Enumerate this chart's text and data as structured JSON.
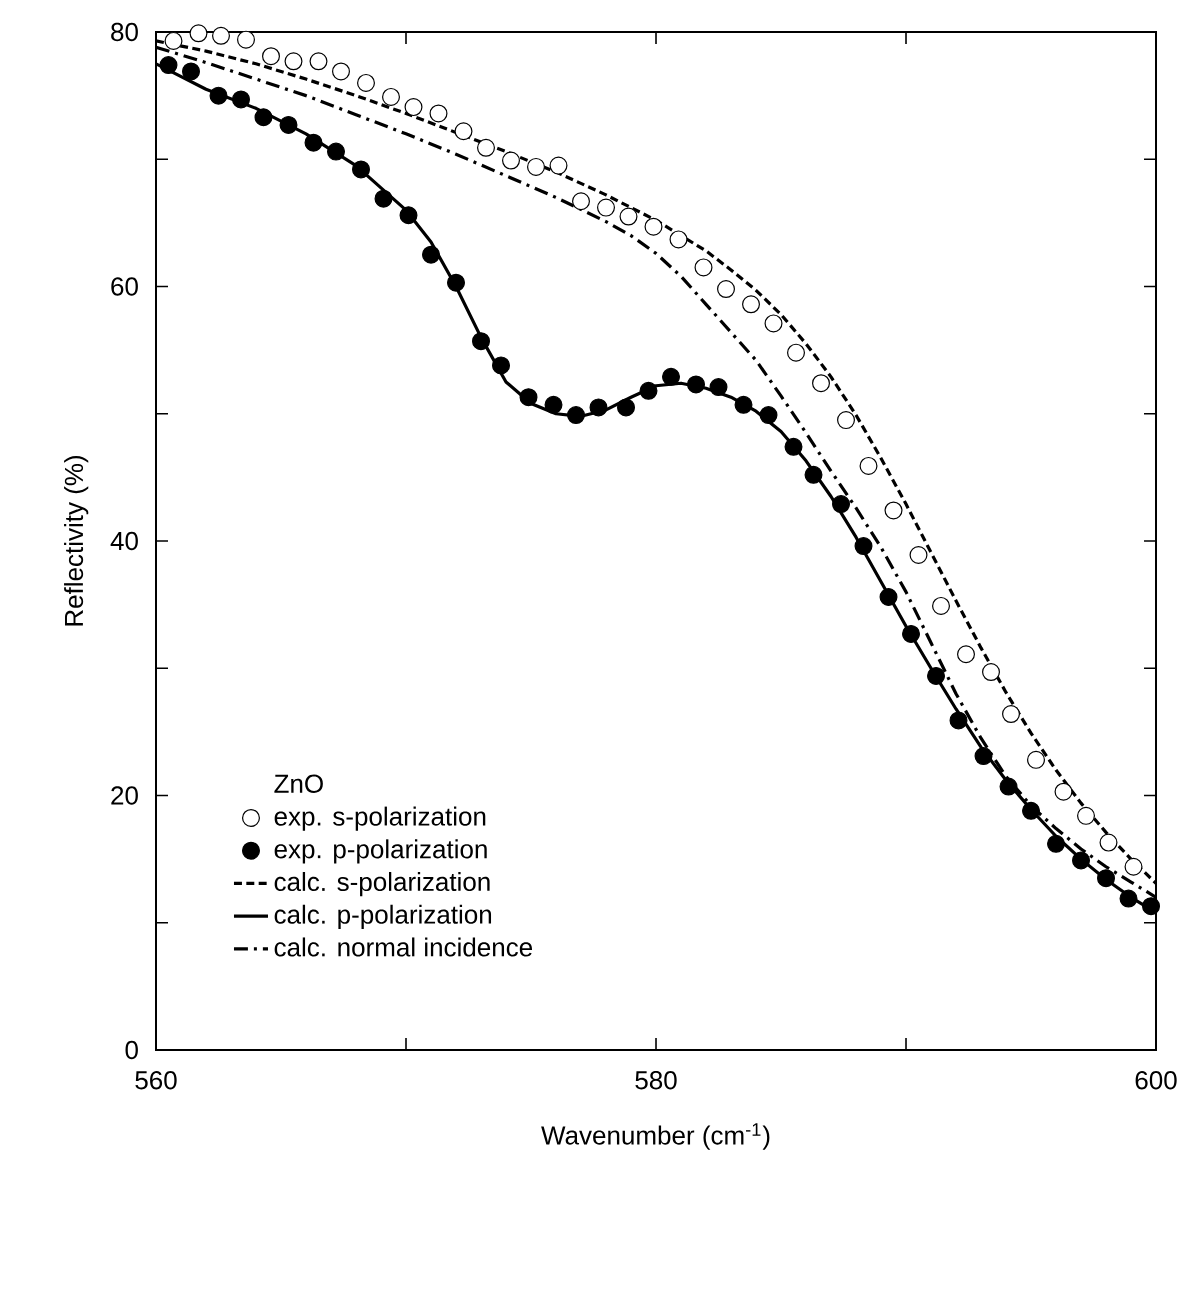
{
  "chart_data": {
    "type": "scatter",
    "xlabel": "Wavenumber (cm$^{-1}$)",
    "ylabel": "Reflectivity (%)",
    "legend_title": "ZnO",
    "xlim": [
      560,
      600
    ],
    "ylim": [
      0,
      80
    ],
    "xticks": [
      560,
      {
        "value": 570,
        "label": null
      },
      580,
      {
        "value": 590,
        "label": null
      },
      600
    ],
    "yticks": [
      0,
      {
        "value": 10,
        "label": null
      },
      20,
      {
        "value": 30,
        "label": null
      },
      40,
      {
        "value": 50,
        "label": null
      },
      60,
      {
        "value": 70,
        "label": null
      },
      80
    ],
    "grid": false,
    "legend": "bottom left",
    "series": [
      {
        "name": "exp. s-polarization",
        "marker": "circle",
        "color": "#ffffff",
        "x": [
          560.7,
          561.7,
          562.6,
          563.6,
          564.6,
          565.5,
          566.5,
          567.4,
          568.4,
          569.4,
          570.3,
          571.3,
          572.3,
          573.2,
          574.2,
          575.2,
          576.1,
          577.0,
          578.0,
          578.9,
          579.9,
          580.9,
          581.9,
          582.8,
          583.8,
          584.7,
          585.6,
          586.6,
          587.6,
          588.5,
          589.5,
          590.5,
          591.4,
          592.4,
          593.4,
          594.2,
          595.2,
          596.3,
          597.2,
          598.1,
          599.1
        ],
        "values": [
          79.3,
          79.9,
          79.7,
          79.4,
          78.1,
          77.7,
          77.7,
          76.9,
          76.0,
          74.9,
          74.1,
          73.6,
          72.2,
          70.9,
          69.9,
          69.4,
          69.5,
          66.7,
          66.2,
          65.5,
          64.7,
          63.7,
          61.5,
          59.8,
          58.6,
          57.1,
          54.8,
          52.4,
          49.5,
          45.9,
          42.4,
          38.9,
          34.9,
          31.1,
          29.7,
          26.4,
          22.8,
          20.3,
          18.4,
          16.3,
          14.4
        ]
      },
      {
        "name": "exp. p-polarization",
        "marker": "circle",
        "color": "#000000",
        "x": [
          560.5,
          561.4,
          562.5,
          563.4,
          564.3,
          565.3,
          566.3,
          567.2,
          568.2,
          569.1,
          570.1,
          571.0,
          572.0,
          573.0,
          573.8,
          574.9,
          575.9,
          576.8,
          577.7,
          578.8,
          579.7,
          580.6,
          581.6,
          582.5,
          583.5,
          584.5,
          585.5,
          586.3,
          587.4,
          588.3,
          589.3,
          590.2,
          591.2,
          592.1,
          593.1,
          594.1,
          595.0,
          596.0,
          597.0,
          598.0,
          598.9,
          599.8
        ],
        "values": [
          77.4,
          76.9,
          75.0,
          74.7,
          73.3,
          72.7,
          71.3,
          70.6,
          69.2,
          66.9,
          65.6,
          62.5,
          60.3,
          55.7,
          53.8,
          51.3,
          50.7,
          49.9,
          50.5,
          50.5,
          51.8,
          52.9,
          52.3,
          52.1,
          50.7,
          49.9,
          47.4,
          45.2,
          42.9,
          39.6,
          35.6,
          32.7,
          29.4,
          25.9,
          23.1,
          20.7,
          18.8,
          16.2,
          14.9,
          13.5,
          11.9,
          11.3
        ]
      },
      {
        "name": "calc. s-polarization",
        "type": "line",
        "line_style": "dashed",
        "marker": "none",
        "color": "#000000",
        "x": [
          560,
          562,
          564,
          566,
          568,
          570,
          572,
          574,
          576,
          578,
          580,
          582,
          583,
          584,
          585,
          586,
          587,
          588,
          589,
          590,
          591,
          592,
          593,
          594,
          595,
          596,
          597,
          598,
          599,
          600
        ],
        "values": [
          79.3,
          78.5,
          77.5,
          76.3,
          75.0,
          73.6,
          72.1,
          70.6,
          69.0,
          67.2,
          65.2,
          62.8,
          61.3,
          59.7,
          57.8,
          55.5,
          52.9,
          49.9,
          46.5,
          42.9,
          39.1,
          35.3,
          31.6,
          28.1,
          24.9,
          22.0,
          19.4,
          17.1,
          15.0,
          13.1
        ]
      },
      {
        "name": "calc. p-polarization",
        "type": "line",
        "line_style": "solid",
        "marker": "none",
        "color": "#000000",
        "x": [
          560,
          562,
          564,
          566,
          568,
          570,
          571,
          572,
          573,
          574,
          575,
          576,
          577,
          578,
          579,
          580,
          581,
          582,
          583,
          584,
          585,
          586,
          587,
          588,
          589,
          590,
          591,
          592,
          593,
          594,
          595,
          596,
          597,
          598,
          599,
          600
        ],
        "values": [
          77.5,
          75.5,
          74.0,
          72.0,
          69.5,
          66.0,
          63.5,
          60.0,
          56.0,
          52.5,
          50.8,
          50.0,
          49.8,
          50.3,
          51.3,
          52.2,
          52.4,
          52.0,
          51.3,
          50.2,
          48.6,
          46.3,
          43.5,
          40.3,
          36.8,
          33.3,
          30.0,
          26.8,
          23.8,
          21.2,
          18.9,
          16.8,
          15.0,
          13.4,
          12.0,
          10.8
        ]
      },
      {
        "name": "calc. normal incidence",
        "type": "line",
        "line_style": "dashdot",
        "marker": "none",
        "color": "#000000",
        "x": [
          560,
          562,
          564,
          566,
          568,
          570,
          572,
          574,
          576,
          578,
          579,
          580,
          581,
          582,
          583,
          584,
          585,
          586,
          587,
          588,
          589,
          590,
          591,
          592,
          593,
          594,
          595,
          596,
          597,
          598,
          599,
          600
        ],
        "values": [
          78.8,
          77.6,
          76.3,
          75.0,
          73.5,
          72.0,
          70.4,
          68.7,
          67.0,
          65.1,
          64.0,
          62.6,
          60.8,
          58.6,
          56.4,
          54.2,
          51.4,
          48.5,
          45.5,
          42.6,
          39.5,
          36.0,
          32.0,
          28.0,
          24.5,
          21.5,
          19.2,
          17.4,
          15.8,
          14.4,
          13.2,
          12.0
        ]
      }
    ]
  }
}
